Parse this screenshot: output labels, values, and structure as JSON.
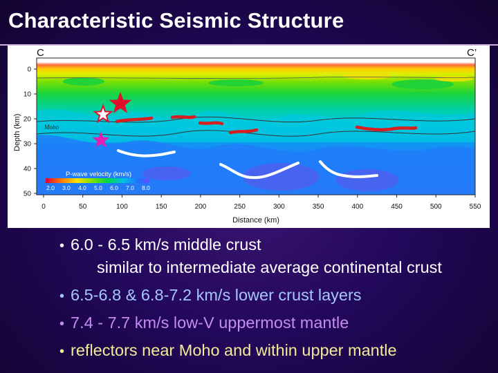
{
  "slide": {
    "title": "Characteristic Seismic Structure"
  },
  "figure": {
    "profile_start": "C",
    "profile_end": "C’",
    "ylabel": "Depth (km)",
    "xlabel": "Distance (km)",
    "x_ticks": [
      "0",
      "50",
      "100",
      "150",
      "200",
      "250",
      "300",
      "350",
      "400",
      "450",
      "500",
      "550"
    ],
    "y_ticks": [
      "0",
      "10",
      "20",
      "30",
      "40",
      "50"
    ],
    "moho_label": "Moho",
    "legend": {
      "title": "P-wave velocity (km/s)",
      "ticks": [
        "2.0",
        "3.0",
        "4.0",
        "5.0",
        "6.0",
        "7.0",
        "8.0"
      ]
    },
    "colors": {
      "velocity_scale": [
        "#e0003a",
        "#ff7a00",
        "#ffe000",
        "#7ee000",
        "#00d84a",
        "#00c0e6",
        "#2070ff",
        "#6a4cff"
      ],
      "station_star": "#e0102a",
      "station_star_lower": "#e020b0",
      "reflector_crust": "#d81e1e",
      "reflector_mantle": "#ffffff"
    }
  },
  "bullets": {
    "b1": "6.0 - 6.5 km/s middle crust",
    "b1_sub": "similar to intermediate average continental crust",
    "b2": "6.5-6.8 &  6.8-7.2 km/s lower crust layers",
    "b3": "7.4 - 7.7 km/s low-V uppermost mantle",
    "b4": "reflectors near Moho and within upper mantle",
    "marker": "•",
    "colors": {
      "b1": "#ffffff",
      "b2": "#a6c6ff",
      "b3": "#c58cf2",
      "b4": "#f2ec96"
    }
  }
}
